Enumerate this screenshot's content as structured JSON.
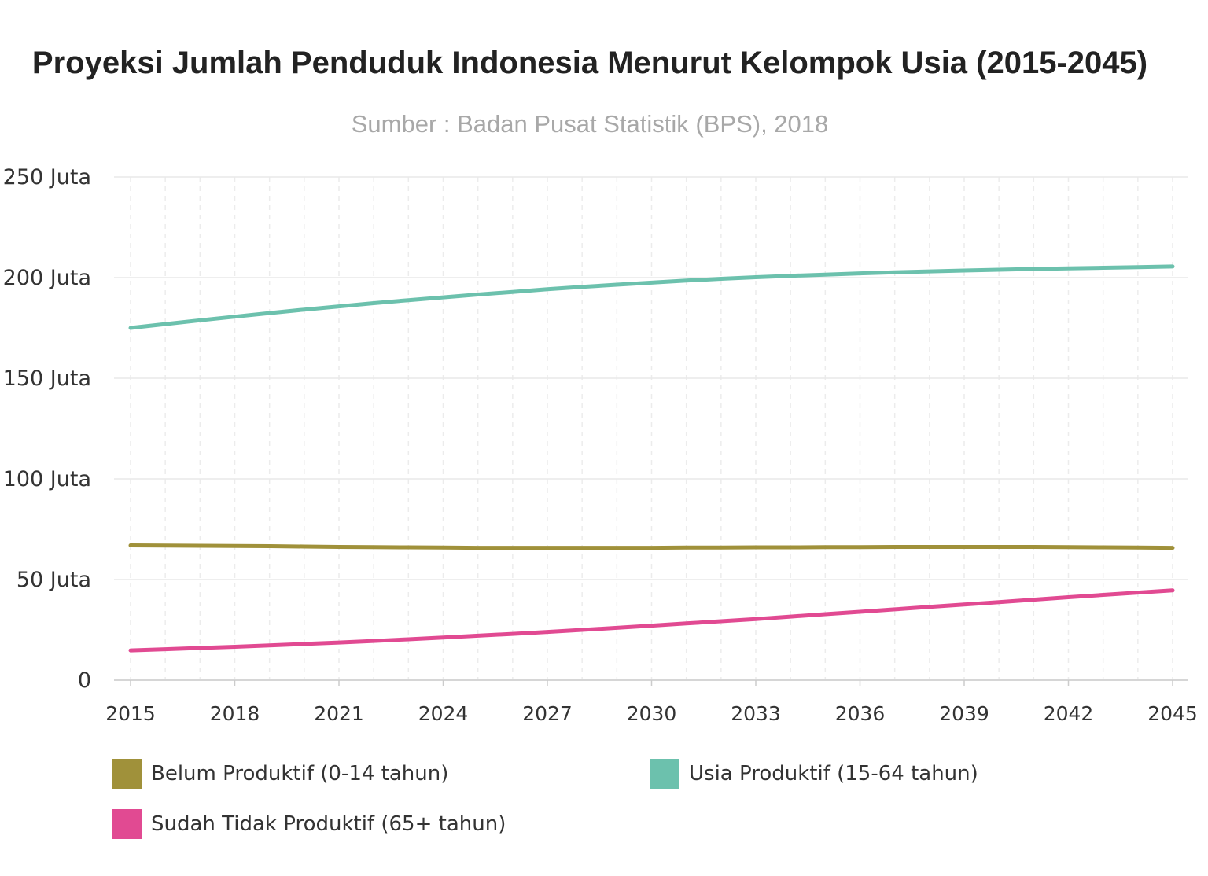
{
  "chart_data": {
    "type": "line",
    "title": "Proyeksi Jumlah Penduduk Indonesia Menurut Kelompok Usia (2015-2045)",
    "subtitle": "Sumber : Badan Pusat Statistik (BPS), 2018",
    "xlabel": "",
    "ylabel": "",
    "x": [
      2015,
      2016,
      2017,
      2018,
      2019,
      2020,
      2021,
      2022,
      2023,
      2024,
      2025,
      2026,
      2027,
      2028,
      2029,
      2030,
      2031,
      2032,
      2033,
      2034,
      2035,
      2036,
      2037,
      2038,
      2039,
      2040,
      2041,
      2042,
      2043,
      2044,
      2045
    ],
    "x_ticks": [
      "2015",
      "2018",
      "2021",
      "2024",
      "2027",
      "2030",
      "2033",
      "2036",
      "2039",
      "2042",
      "2045"
    ],
    "y_ticks": [
      "0",
      "50 Juta",
      "100 Juta",
      "150 Juta",
      "200 Juta",
      "250 Juta"
    ],
    "ylim": [
      0,
      250
    ],
    "y_unit": "Juta",
    "grid": true,
    "legend_position": "bottom",
    "series": [
      {
        "name": "Belum Produktif (0-14 tahun)",
        "color": "#a0913a",
        "values": [
          67.0,
          66.9,
          66.8,
          66.7,
          66.6,
          66.4,
          66.2,
          66.1,
          66.0,
          65.9,
          65.8,
          65.8,
          65.8,
          65.8,
          65.8,
          65.8,
          65.9,
          65.9,
          66.0,
          66.0,
          66.1,
          66.1,
          66.2,
          66.2,
          66.2,
          66.2,
          66.2,
          66.1,
          66.0,
          65.9,
          65.8
        ]
      },
      {
        "name": "Usia Produktif (15-64 tahun)",
        "color": "#6cc1ad",
        "values": [
          175.0,
          176.9,
          178.8,
          180.6,
          182.4,
          184.1,
          185.7,
          187.3,
          188.8,
          190.2,
          191.6,
          192.9,
          194.2,
          195.4,
          196.5,
          197.5,
          198.5,
          199.4,
          200.2,
          200.9,
          201.5,
          202.1,
          202.6,
          203.1,
          203.5,
          203.9,
          204.3,
          204.6,
          204.9,
          205.2,
          205.5
        ]
      },
      {
        "name": "Sudah Tidak Produktif (65+ tahun)",
        "color": "#e14a92",
        "values": [
          14.8,
          15.4,
          16.0,
          16.6,
          17.3,
          18.0,
          18.7,
          19.5,
          20.3,
          21.2,
          22.1,
          23.0,
          24.0,
          25.0,
          26.0,
          27.1,
          28.2,
          29.3,
          30.4,
          31.6,
          32.8,
          34.0,
          35.2,
          36.4,
          37.6,
          38.8,
          40.0,
          41.2,
          42.4,
          43.5,
          44.6
        ]
      }
    ]
  }
}
